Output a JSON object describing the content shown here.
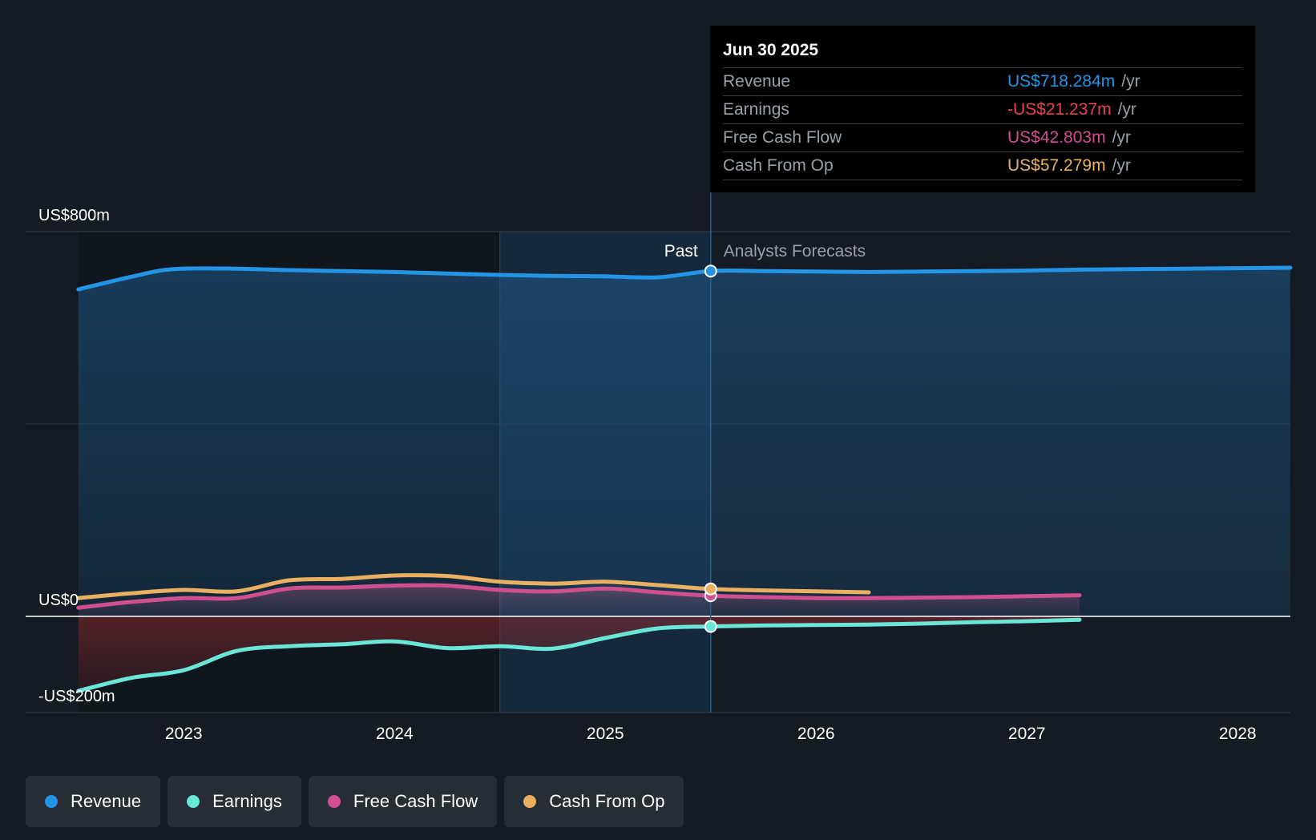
{
  "tooltip": {
    "date": "Jun 30 2025",
    "rows": [
      {
        "label": "Revenue",
        "value": "US$718.284m",
        "unit": "/yr",
        "color": "#2394e6"
      },
      {
        "label": "Earnings",
        "value": "-US$21.237m",
        "unit": "/yr",
        "color": "#e8434b"
      },
      {
        "label": "Free Cash Flow",
        "value": "US$42.803m",
        "unit": "/yr",
        "color": "#cf4f8f"
      },
      {
        "label": "Cash From Op",
        "value": "US$57.279m",
        "unit": "/yr",
        "color": "#e9b061"
      }
    ]
  },
  "legend": [
    {
      "label": "Revenue",
      "color": "#2394e6"
    },
    {
      "label": "Earnings",
      "color": "#6ae6d6"
    },
    {
      "label": "Free Cash Flow",
      "color": "#cf4f8f"
    },
    {
      "label": "Cash From Op",
      "color": "#e9b061"
    }
  ],
  "chart_data": {
    "type": "line",
    "ylim": [
      -200,
      800
    ],
    "y_ticks": [
      {
        "value": 800,
        "label": "US$800m"
      },
      {
        "value": 0,
        "label": "US$0"
      },
      {
        "value": -200,
        "label": "-US$200m"
      }
    ],
    "x_ticks": [
      {
        "value": 2023.0,
        "label": "2023"
      },
      {
        "value": 2024.0,
        "label": "2024"
      },
      {
        "value": 2025.0,
        "label": "2025"
      },
      {
        "value": 2026.0,
        "label": "2026"
      },
      {
        "value": 2027.0,
        "label": "2027"
      },
      {
        "value": 2028.0,
        "label": "2028"
      }
    ],
    "xlim": [
      2022.25,
      2028.25
    ],
    "past_label": "Past",
    "forecast_label": "Analysts Forecasts",
    "past_end": 2025.5,
    "highlight_start": 2024.5,
    "series": [
      {
        "name": "Revenue",
        "color": "#2394e6",
        "x": [
          2022.5,
          2022.75,
          2022.95,
          2023.25,
          2023.5,
          2023.75,
          2024.0,
          2024.25,
          2024.5,
          2024.75,
          2025.0,
          2025.25,
          2025.5,
          2025.75,
          2026.0,
          2026.25,
          2026.5,
          2026.75,
          2027.0,
          2027.25,
          2027.5,
          2027.75,
          2028.0,
          2028.25
        ],
        "y": [
          680,
          706,
          722,
          723,
          720,
          718,
          716,
          713,
          710,
          708,
          707,
          705,
          718,
          718,
          717,
          716,
          717,
          718,
          719,
          721,
          722,
          723,
          724,
          725
        ]
      },
      {
        "name": "Earnings",
        "color": "#6ae6d6",
        "x": [
          2022.5,
          2022.75,
          2023.0,
          2023.25,
          2023.5,
          2023.75,
          2024.0,
          2024.25,
          2024.5,
          2024.75,
          2025.0,
          2025.25,
          2025.5,
          2025.75,
          2026.0,
          2026.25,
          2026.5,
          2026.75,
          2027.0,
          2027.25
        ],
        "y": [
          -155,
          -128,
          -112,
          -72,
          -62,
          -58,
          -52,
          -66,
          -62,
          -67,
          -45,
          -25,
          -21,
          -19,
          -18,
          -17,
          -15,
          -12,
          -10,
          -7
        ]
      },
      {
        "name": "Free Cash Flow",
        "color": "#cf4f8f",
        "x": [
          2022.5,
          2022.75,
          2023.0,
          2023.25,
          2023.5,
          2023.75,
          2024.0,
          2024.25,
          2024.5,
          2024.75,
          2025.0,
          2025.25,
          2025.5,
          2025.75,
          2026.0,
          2026.25,
          2026.5,
          2026.75,
          2027.0,
          2027.25
        ],
        "y": [
          18,
          30,
          38,
          38,
          58,
          60,
          64,
          64,
          55,
          52,
          58,
          50,
          43,
          40,
          38,
          38,
          39,
          40,
          42,
          44
        ]
      },
      {
        "name": "Cash From Op",
        "color": "#e9b061",
        "x": [
          2022.5,
          2022.75,
          2023.0,
          2023.25,
          2023.5,
          2023.75,
          2024.0,
          2024.25,
          2024.5,
          2024.75,
          2025.0,
          2025.25,
          2025.5,
          2025.75,
          2026.0,
          2026.25
        ],
        "y": [
          38,
          48,
          55,
          52,
          75,
          78,
          85,
          84,
          72,
          68,
          72,
          65,
          57,
          54,
          52,
          50
        ]
      }
    ]
  }
}
